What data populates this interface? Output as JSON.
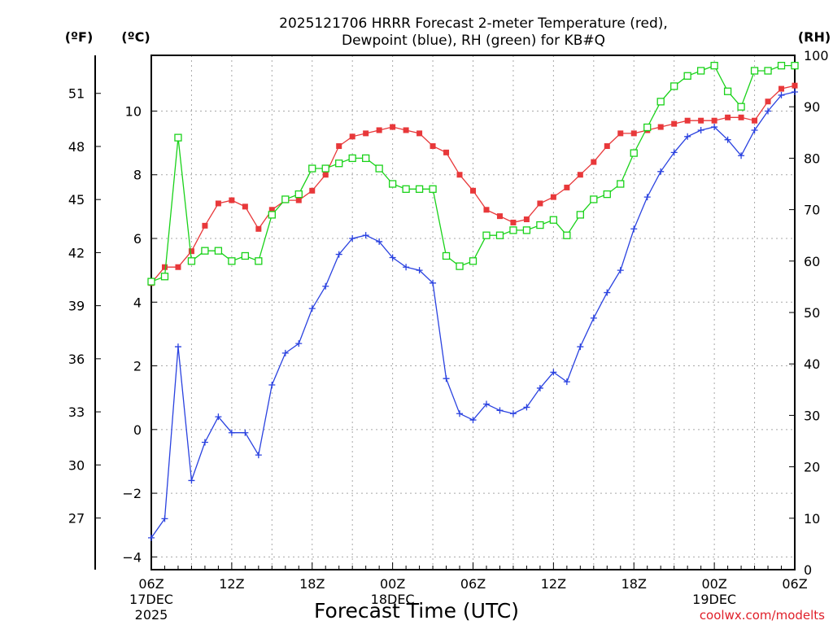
{
  "chart_data": {
    "type": "line",
    "title_line1": "2025121706 HRRR Forecast 2-meter Temperature (red),",
    "title_line2": "Dewpoint (blue), RH (green) for KB#Q",
    "xlabel": "Forecast Time (UTC)",
    "credit": "coolwx.com/modelts",
    "left_unit_f": "(ºF)",
    "left_unit_c": "(ºC)",
    "right_unit": "(RH)",
    "x_hours_from_start": [
      0,
      1,
      2,
      3,
      4,
      5,
      6,
      7,
      8,
      9,
      10,
      11,
      12,
      13,
      14,
      15,
      16,
      17,
      18,
      19,
      20,
      21,
      22,
      23,
      24,
      25,
      26,
      27,
      28,
      29,
      30,
      31,
      32,
      33,
      34,
      35,
      36,
      37,
      38,
      39,
      40,
      41,
      42,
      43,
      44,
      45,
      46,
      47,
      48
    ],
    "xlim": [
      0,
      48
    ],
    "x_ticks": [
      {
        "hour": 0,
        "line1": "06Z",
        "line2": "17DEC",
        "line3": "2025"
      },
      {
        "hour": 6,
        "line1": "12Z",
        "line2": "",
        "line3": ""
      },
      {
        "hour": 12,
        "line1": "18Z",
        "line2": "",
        "line3": ""
      },
      {
        "hour": 18,
        "line1": "00Z",
        "line2": "18DEC",
        "line3": ""
      },
      {
        "hour": 24,
        "line1": "06Z",
        "line2": "",
        "line3": ""
      },
      {
        "hour": 30,
        "line1": "12Z",
        "line2": "",
        "line3": ""
      },
      {
        "hour": 36,
        "line1": "18Z",
        "line2": "",
        "line3": ""
      },
      {
        "hour": 42,
        "line1": "00Z",
        "line2": "19DEC",
        "line3": ""
      },
      {
        "hour": 48,
        "line1": "06Z",
        "line2": "",
        "line3": ""
      }
    ],
    "celsius_axis": {
      "ylim": [
        -4.4,
        11.75
      ],
      "ticks": [
        "-4",
        "-2",
        "0",
        "2",
        "4",
        "6",
        "8",
        "10"
      ]
    },
    "fahrenheit_axis": {
      "ticks": [
        "27",
        "30",
        "33",
        "36",
        "39",
        "42",
        "45",
        "48",
        "51"
      ]
    },
    "rh_axis": {
      "ylim": [
        0,
        100
      ],
      "ticks": [
        "0",
        "10",
        "20",
        "30",
        "40",
        "50",
        "60",
        "70",
        "80",
        "90",
        "100"
      ]
    },
    "series": [
      {
        "name": "Temperature",
        "units": "C",
        "color": "#e8383a",
        "marker": "filled-square",
        "values": [
          4.6,
          5.1,
          5.1,
          5.6,
          6.4,
          7.1,
          7.2,
          7.0,
          6.3,
          6.9,
          7.2,
          7.2,
          7.5,
          8.0,
          8.9,
          9.2,
          9.3,
          9.4,
          9.5,
          9.4,
          9.3,
          8.9,
          8.7,
          8.0,
          7.5,
          6.9,
          6.7,
          6.5,
          6.6,
          7.1,
          7.3,
          7.6,
          8.0,
          8.4,
          8.9,
          9.3,
          9.3,
          9.4,
          9.5,
          9.6,
          9.7,
          9.7,
          9.7,
          9.8,
          9.8,
          9.7,
          10.3,
          10.7,
          10.8
        ]
      },
      {
        "name": "Dewpoint",
        "units": "C",
        "color": "#2a42e0",
        "marker": "plus",
        "values": [
          -3.4,
          -2.8,
          2.6,
          -1.6,
          -0.4,
          0.4,
          -0.1,
          -0.1,
          -0.8,
          1.4,
          2.4,
          2.7,
          3.8,
          4.5,
          5.5,
          6.0,
          6.1,
          5.9,
          5.4,
          5.1,
          5.0,
          4.6,
          1.6,
          0.5,
          0.3,
          0.8,
          0.6,
          0.5,
          0.7,
          1.3,
          1.8,
          1.5,
          2.6,
          3.5,
          4.3,
          5.0,
          6.3,
          7.3,
          8.1,
          8.7,
          9.2,
          9.4,
          9.5,
          9.1,
          8.6,
          9.4,
          10.0,
          10.5,
          10.6
        ]
      },
      {
        "name": "RH",
        "units": "%",
        "color": "#19d219",
        "marker": "open-square",
        "values": [
          56,
          57,
          84,
          60,
          62,
          62,
          60,
          61,
          60,
          69,
          72,
          73,
          78,
          78,
          79,
          80,
          80,
          78,
          75,
          74,
          74,
          74,
          61,
          59,
          60,
          65,
          65,
          66,
          66,
          67,
          68,
          65,
          69,
          72,
          73,
          75,
          81,
          86,
          91,
          94,
          96,
          97,
          98,
          93,
          90,
          97,
          97,
          98,
          98
        ]
      }
    ]
  }
}
